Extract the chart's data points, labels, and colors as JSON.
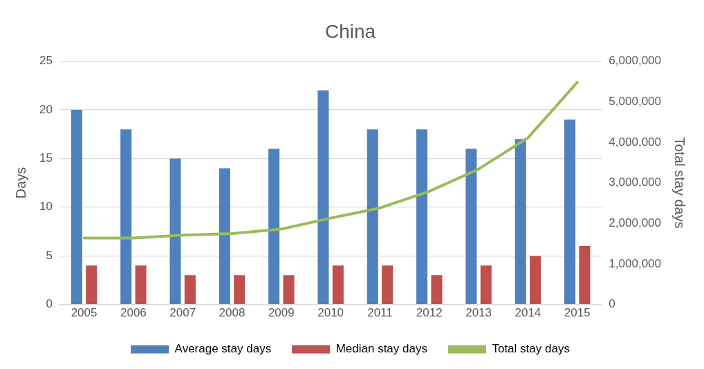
{
  "chart_data": {
    "type": "bar",
    "title": "China",
    "ylabel": "Days",
    "y2label": "Total stay days",
    "categories": [
      "2005",
      "2006",
      "2007",
      "2008",
      "2009",
      "2010",
      "2011",
      "2012",
      "2013",
      "2014",
      "2015"
    ],
    "series": [
      {
        "name": "Average stay days",
        "color": "#4f81bd",
        "values": [
          20,
          18,
          15,
          14,
          16,
          22,
          18,
          18,
          16,
          17,
          19
        ]
      },
      {
        "name": "Median stay days",
        "color": "#c0504d",
        "values": [
          4,
          4,
          3,
          3,
          3,
          4,
          4,
          3,
          4,
          5,
          6
        ]
      },
      {
        "name": "Total stay days",
        "type": "line",
        "axis": "y2",
        "color": "#9bbb59",
        "values": [
          1640000,
          1640000,
          1710000,
          1750000,
          1860000,
          2130000,
          2380000,
          2790000,
          3340000,
          4110000,
          5480000
        ]
      }
    ],
    "ylim": [
      0,
      25
    ],
    "yticks": [
      0,
      5,
      10,
      15,
      20,
      25
    ],
    "y2lim": [
      0,
      6000000
    ],
    "y2ticks": [
      {
        "value": 0,
        "label": "0"
      },
      {
        "value": 1000000,
        "label": "1,000,000"
      },
      {
        "value": 2000000,
        "label": "2,000,000"
      },
      {
        "value": 3000000,
        "label": "3,000,000"
      },
      {
        "value": 4000000,
        "label": "4,000,000"
      },
      {
        "value": 5000000,
        "label": "5,000,000"
      },
      {
        "value": 6000000,
        "label": "6,000,000"
      }
    ],
    "grid": "y",
    "legend": "bottom",
    "marker": "none"
  }
}
